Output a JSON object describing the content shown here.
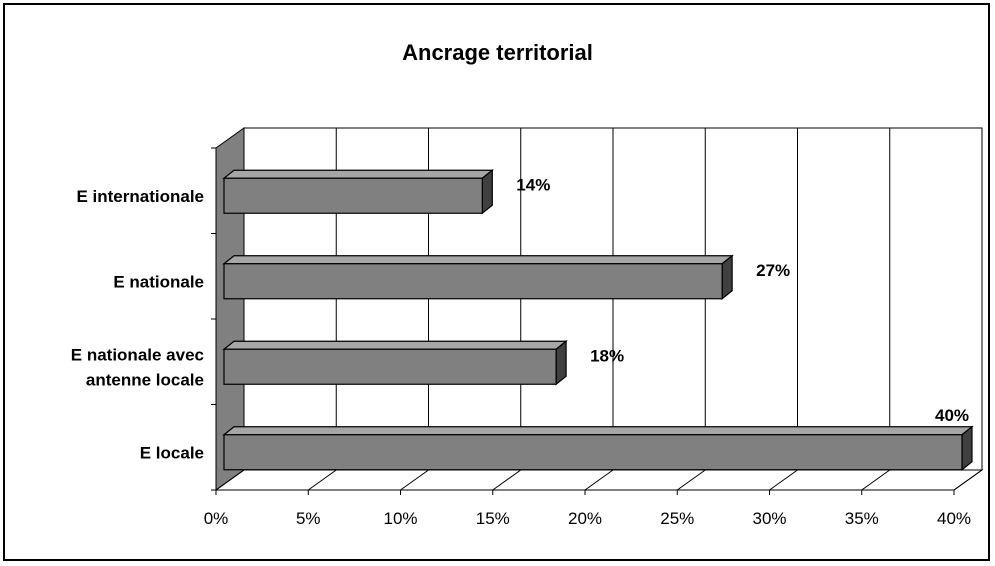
{
  "chart_data": {
    "type": "bar",
    "orientation": "horizontal",
    "title": "Ancrage territorial",
    "categories": [
      "E internationale",
      "E nationale",
      "E nationale avec antenne locale",
      "E locale"
    ],
    "category_label_lines": [
      [
        "E internationale"
      ],
      [
        "E nationale"
      ],
      [
        "E nationale avec",
        "antenne locale"
      ],
      [
        "E locale"
      ]
    ],
    "values": [
      14,
      27,
      18,
      40
    ],
    "value_labels": [
      "14%",
      "27%",
      "18%",
      "40%"
    ],
    "x_ticks": [
      "0%",
      "5%",
      "10%",
      "15%",
      "20%",
      "25%",
      "30%",
      "35%",
      "40%"
    ],
    "xlim": [
      0,
      40
    ],
    "xlabel": "",
    "ylabel": "",
    "grid": true,
    "legend": "none",
    "style": "3d",
    "colors": {
      "bar_front": "#808080",
      "bar_top": "#a6a6a6",
      "bar_side": "#404040",
      "wall": "#808080",
      "grid": "#000000"
    }
  }
}
